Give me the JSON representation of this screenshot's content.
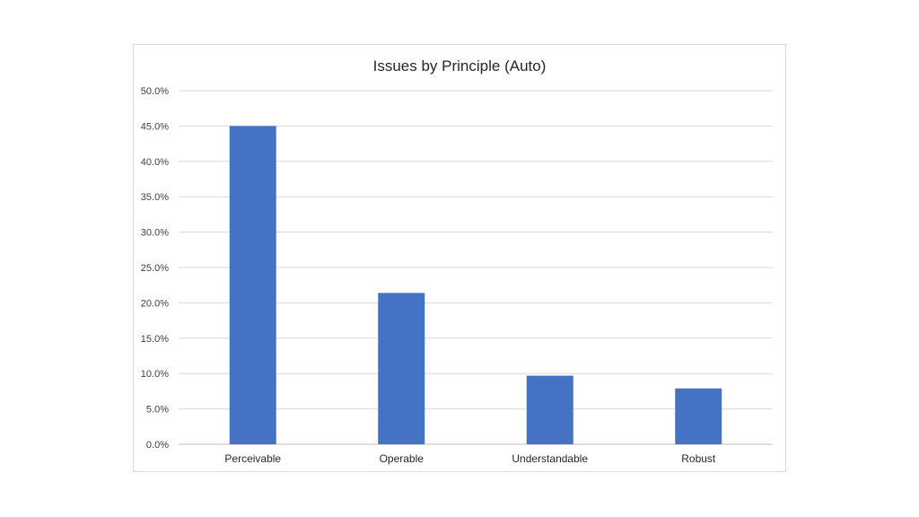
{
  "chart_data": {
    "type": "bar",
    "title": "Issues by Principle (Auto)",
    "categories": [
      "Perceivable",
      "Operable",
      "Understandable",
      "Robust"
    ],
    "values": [
      45.0,
      21.4,
      9.7,
      7.9
    ],
    "value_unit": "percent",
    "ylim": [
      0,
      50
    ],
    "ytick_step": 5,
    "ytick_labels": [
      "0.0%",
      "5.0%",
      "10.0%",
      "15.0%",
      "20.0%",
      "25.0%",
      "30.0%",
      "35.0%",
      "40.0%",
      "45.0%",
      "50.0%"
    ],
    "xlabel": "",
    "ylabel": "",
    "grid": true,
    "legend": "none",
    "bar_color": "#4472C4"
  }
}
